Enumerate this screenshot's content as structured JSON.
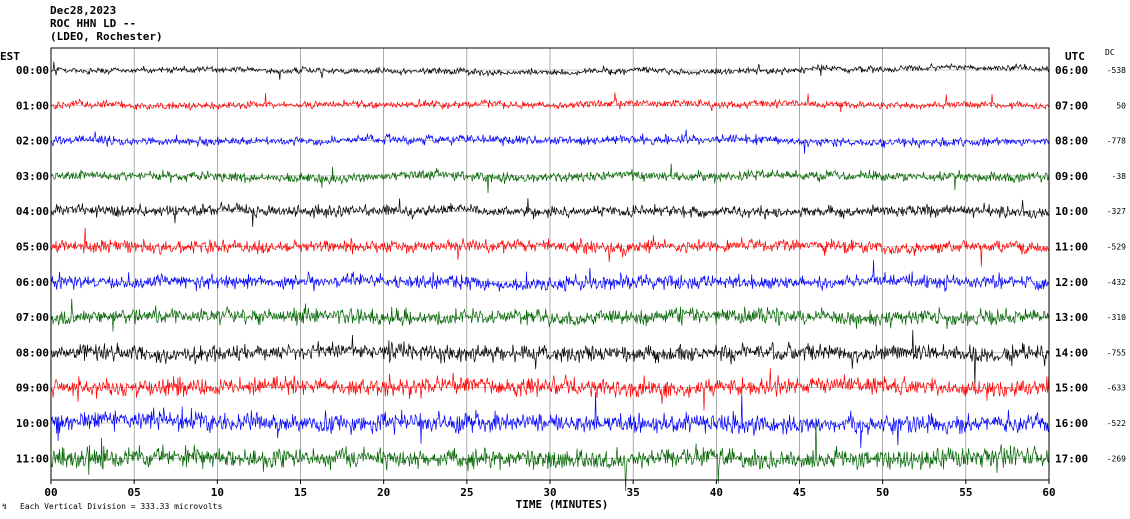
{
  "header": {
    "date": "Dec28,2023",
    "station": "ROC HHN LD --",
    "network": "(LDEO, Rochester)"
  },
  "labels": {
    "left_zone": "EST",
    "right_zone": "UTC",
    "dc": "DC",
    "xlabel": "TIME (MINUTES)",
    "footer": "Each Vertical Division =  333.33 microvolts"
  },
  "chart_data": {
    "type": "line",
    "xlabel": "TIME (MINUTES)",
    "xlim": [
      0,
      60
    ],
    "x_ticks": [
      "00",
      "05",
      "10",
      "15",
      "20",
      "25",
      "30",
      "35",
      "40",
      "45",
      "50",
      "55",
      "60"
    ],
    "grid": true,
    "trace_colors": [
      "#000000",
      "#ff0000",
      "#0000ff",
      "#006400"
    ],
    "rows": [
      {
        "est": "00:00",
        "utc": "06:00",
        "dc": "-538",
        "color": "#000000"
      },
      {
        "est": "01:00",
        "utc": "07:00",
        "dc": "50",
        "color": "#ff0000"
      },
      {
        "est": "02:00",
        "utc": "08:00",
        "dc": "-778",
        "color": "#0000ff"
      },
      {
        "est": "03:00",
        "utc": "09:00",
        "dc": "-38",
        "color": "#006400"
      },
      {
        "est": "04:00",
        "utc": "10:00",
        "dc": "-327",
        "color": "#000000"
      },
      {
        "est": "05:00",
        "utc": "11:00",
        "dc": "-529",
        "color": "#ff0000"
      },
      {
        "est": "06:00",
        "utc": "12:00",
        "dc": "-432",
        "color": "#0000ff"
      },
      {
        "est": "07:00",
        "utc": "13:00",
        "dc": "-310",
        "color": "#006400"
      },
      {
        "est": "08:00",
        "utc": "14:00",
        "dc": "-755",
        "color": "#000000"
      },
      {
        "est": "09:00",
        "utc": "15:00",
        "dc": "-633",
        "color": "#ff0000"
      },
      {
        "est": "10:00",
        "utc": "16:00",
        "dc": "-522",
        "color": "#0000ff"
      },
      {
        "est": "11:00",
        "utc": "17:00",
        "dc": "-269",
        "color": "#006400"
      }
    ]
  }
}
